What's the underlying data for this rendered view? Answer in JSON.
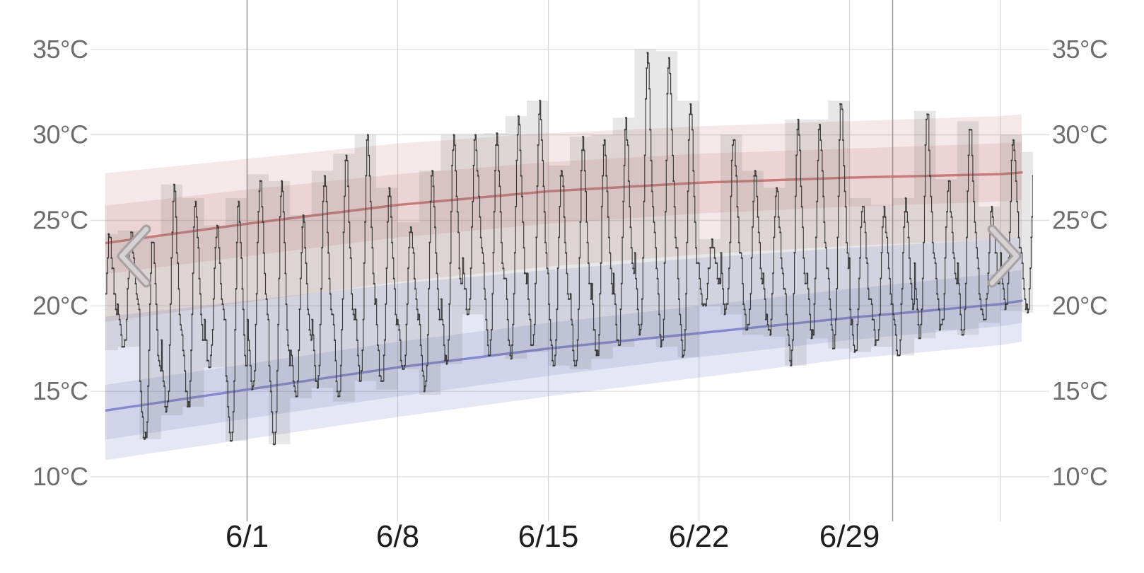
{
  "page": {
    "description": "Monthly weather history chart: hourly temperature with daily range bars over climate percentile bands"
  },
  "nav": {
    "prev_icon": "chevron-left",
    "next_icon": "chevron-right"
  },
  "colors": {
    "background": "#ffffff",
    "grid_h": "#dcdcdc",
    "grid_v": "#d5d5d5",
    "grid_month": "#9a9a9a",
    "band_red": "rgba(187,95,95,0.14)",
    "band_blue": "rgba(98,104,186,0.16)",
    "line_red": "rgba(192,100,100,0.8)",
    "line_blue": "rgba(112,117,196,0.8)",
    "bar": "rgba(110,110,110,0.17)",
    "hourly_line": "#3a3a3a",
    "y_label": "#6d6d6d",
    "x_label": "#1d1d1d",
    "chevron_outer": "#a7a3a4",
    "chevron_inner": "#d6d2d3"
  },
  "chart_data": {
    "type": "line",
    "title": "",
    "ylabel": "",
    "xlabel": "",
    "ylim": [
      8.5,
      37.5
    ],
    "grid": true,
    "legend_position": "none",
    "y_axis": {
      "unit": "°C",
      "ticks": [
        35,
        30,
        25,
        20,
        15,
        10
      ],
      "tick_labels": [
        "35°C",
        "30°C",
        "25°C",
        "20°C",
        "15°C",
        "10°C"
      ],
      "shown_on": "both-sides"
    },
    "x_axis": {
      "tick_labels": [
        "6/1",
        "6/8",
        "6/15",
        "6/22",
        "6/29"
      ],
      "tick_days": [
        7,
        14,
        21,
        28,
        35
      ],
      "light_gridline_days": [
        14,
        21,
        28,
        35,
        42
      ],
      "month_boundary_days": [
        7,
        37
      ],
      "start_date": "5/25",
      "end_date": "7/7"
    },
    "daily": {
      "dates": [
        "5/25",
        "5/26",
        "5/27",
        "5/28",
        "5/29",
        "5/30",
        "5/31",
        "6/1",
        "6/2",
        "6/3",
        "6/4",
        "6/5",
        "6/6",
        "6/7",
        "6/8",
        "6/9",
        "6/10",
        "6/11",
        "6/12",
        "6/13",
        "6/14",
        "6/15",
        "6/16",
        "6/17",
        "6/18",
        "6/19",
        "6/20",
        "6/21",
        "6/22",
        "6/23",
        "6/24",
        "6/25",
        "6/26",
        "6/27",
        "6/28",
        "6/29",
        "6/30",
        "7/1",
        "7/2",
        "7/3",
        "7/4",
        "7/5",
        "7/6",
        "7/7"
      ],
      "low": [
        17.4,
        17.6,
        12.2,
        13.6,
        14.1,
        16.4,
        12.1,
        15.1,
        11.9,
        14.6,
        15.2,
        14.4,
        15.6,
        15.1,
        16.3,
        14.8,
        16.6,
        19.5,
        17.1,
        16.9,
        17.3,
        16.5,
        16.3,
        16.9,
        17.6,
        18.1,
        17.6,
        17.0,
        20.0,
        19.5,
        18.3,
        18.2,
        16.5,
        18.1,
        17.5,
        17.3,
        17.6,
        17.1,
        18.1,
        18.6,
        18.3,
        19.0,
        19.7,
        19.6
      ],
      "high": [
        24.2,
        24.4,
        24.0,
        27.1,
        26.3,
        24.7,
        26.3,
        27.7,
        27.3,
        25.3,
        27.9,
        28.9,
        30.0,
        26.9,
        24.9,
        27.9,
        30.0,
        30.0,
        30.1,
        31.1,
        32.0,
        28.2,
        29.9,
        30.0,
        31.0,
        35.0,
        34.9,
        32.0,
        23.9,
        30.0,
        27.9,
        26.9,
        30.9,
        30.9,
        32.0,
        26.3,
        25.9,
        26.3,
        31.4,
        27.4,
        30.8,
        25.8,
        30.0,
        29.0
      ]
    },
    "climate": {
      "day_index": [
        0,
        7,
        14,
        21,
        28,
        35,
        42,
        43
      ],
      "dates": [
        "5/25",
        "6/1",
        "6/8",
        "6/15",
        "6/22",
        "6/29",
        "7/6",
        "7/7"
      ],
      "avg_high": [
        23.6,
        24.8,
        25.9,
        26.7,
        27.2,
        27.5,
        27.7,
        27.8
      ],
      "high_p90": [
        27.7,
        28.6,
        29.5,
        30.1,
        30.5,
        30.8,
        31.1,
        31.2
      ],
      "high_p75": [
        25.8,
        26.8,
        27.7,
        28.4,
        28.9,
        29.2,
        29.5,
        29.6
      ],
      "high_p25": [
        21.8,
        22.9,
        24.0,
        24.8,
        25.4,
        25.8,
        26.1,
        26.2
      ],
      "high_p10": [
        19.0,
        20.2,
        21.4,
        22.3,
        23.0,
        23.5,
        23.9,
        24.0
      ],
      "avg_low": [
        13.8,
        15.1,
        16.4,
        17.5,
        18.4,
        19.3,
        20.1,
        20.3
      ],
      "low_p90": [
        19.3,
        20.3,
        21.3,
        22.1,
        22.8,
        23.4,
        23.9,
        24.0
      ],
      "low_p75": [
        15.3,
        16.6,
        17.9,
        19.0,
        20.0,
        21.0,
        21.9,
        22.1
      ],
      "low_p25": [
        12.1,
        13.4,
        14.7,
        15.9,
        17.0,
        18.0,
        18.8,
        19.0
      ],
      "low_p10": [
        10.9,
        12.2,
        13.5,
        14.7,
        15.8,
        16.9,
        17.7,
        17.9
      ]
    }
  }
}
